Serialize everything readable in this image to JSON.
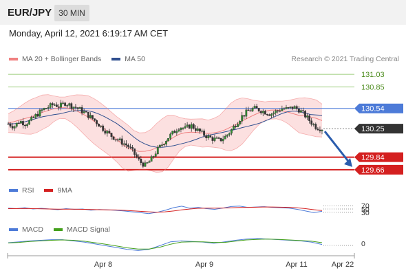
{
  "header": {
    "symbol": "EUR/JPY",
    "timeframe": "30 MIN"
  },
  "datetime": "Monday, April 12, 2021 6:19:17 AM CET",
  "copyright": "Research © 2021 Trading Central",
  "colors": {
    "bollinger": "#f08080",
    "bollinger_band_fill": "#fbd6d6",
    "ma50": "#2f4f8f",
    "resistance": "#9acd7a",
    "resistance_text": "#4a8a1a",
    "pivot": "#4d7bd8",
    "support": "#d42020",
    "current": "#333333",
    "rsi": "#4d7bd8",
    "rsi_ma": "#d42020",
    "macd": "#4d7bd8",
    "macd_signal": "#44a01c",
    "arrow": "#2a5cad"
  },
  "chart_data": [
    {
      "type": "candlestick",
      "panel": "price",
      "legend": [
        "MA 20 + Bollinger Bands",
        "MA 50"
      ],
      "ylim": [
        129.55,
        131.13
      ],
      "levels": [
        {
          "value": 131.03,
          "label": "131.03",
          "kind": "resistance"
        },
        {
          "value": 130.85,
          "label": "130.85",
          "kind": "resistance"
        },
        {
          "value": 130.54,
          "label": "130.54",
          "kind": "pivot"
        },
        {
          "value": 130.25,
          "label": "130.25",
          "kind": "current"
        },
        {
          "value": 129.84,
          "label": "129.84",
          "kind": "support"
        },
        {
          "value": 129.66,
          "label": "129.66",
          "kind": "support"
        }
      ],
      "close_path": [
        130.32,
        130.28,
        130.36,
        130.32,
        130.37,
        130.45,
        130.52,
        130.56,
        130.6,
        130.57,
        130.62,
        130.58,
        130.55,
        130.5,
        130.44,
        130.38,
        130.3,
        130.22,
        130.15,
        130.1,
        130.05,
        130.0,
        129.9,
        129.78,
        129.72,
        129.8,
        129.93,
        130.03,
        130.12,
        130.2,
        130.28,
        130.25,
        130.3,
        130.24,
        130.18,
        130.13,
        130.1,
        130.08,
        130.13,
        130.22,
        130.33,
        130.43,
        130.5,
        130.54,
        130.52,
        130.49,
        130.46,
        130.5,
        130.54,
        130.53,
        130.56,
        130.52,
        130.44,
        130.35,
        130.27,
        130.25
      ],
      "arrow": {
        "from": 130.25,
        "to": 129.66
      },
      "x_ticks": [
        "Apr 8",
        "Apr 9",
        "Apr 11",
        "Apr 22"
      ]
    },
    {
      "type": "line",
      "panel": "rsi",
      "legend": [
        "RSI",
        "9MA"
      ],
      "y_ticks": [
        "70",
        "50",
        "30"
      ],
      "ylim": [
        0,
        100
      ],
      "series": [
        {
          "name": "RSI",
          "values": [
            55,
            52,
            58,
            50,
            54,
            50,
            46,
            52,
            48,
            50,
            43,
            47,
            45,
            42,
            38,
            33,
            28,
            22,
            30,
            42,
            58,
            67,
            55,
            60,
            52,
            48,
            56,
            65,
            68,
            60,
            62,
            64,
            60,
            58,
            55,
            48,
            38,
            28,
            36
          ]
        },
        {
          "name": "9MA",
          "values": [
            52,
            52,
            53,
            52,
            51,
            50,
            49,
            49,
            49,
            48,
            47,
            46,
            45,
            44,
            42,
            39,
            36,
            33,
            31,
            33,
            38,
            45,
            50,
            54,
            55,
            55,
            56,
            57,
            59,
            60,
            61,
            62,
            62,
            61,
            60,
            57,
            52,
            46,
            41
          ]
        }
      ]
    },
    {
      "type": "line",
      "panel": "macd",
      "legend": [
        "MACD",
        "MACD Signal"
      ],
      "y_ticks": [
        "0"
      ],
      "series": [
        {
          "name": "MACD",
          "values": [
            0.0,
            0.03,
            0.06,
            0.08,
            0.1,
            0.1,
            0.06,
            0.02,
            -0.04,
            -0.1,
            -0.16,
            -0.22,
            -0.26,
            -0.22,
            -0.1,
            0.03,
            0.06,
            0.04,
            0.02,
            -0.02,
            0.03,
            0.08,
            0.12,
            0.14,
            0.12,
            0.1,
            0.08,
            0.06,
            0.02,
            -0.06
          ]
        },
        {
          "name": "MACD Signal",
          "values": [
            -0.01,
            0.01,
            0.04,
            0.06,
            0.08,
            0.09,
            0.08,
            0.05,
            0.0,
            -0.05,
            -0.11,
            -0.17,
            -0.21,
            -0.21,
            -0.15,
            -0.05,
            0.02,
            0.03,
            0.03,
            0.01,
            0.01,
            0.05,
            0.09,
            0.11,
            0.12,
            0.11,
            0.09,
            0.07,
            0.05,
            0.0
          ]
        }
      ]
    }
  ]
}
